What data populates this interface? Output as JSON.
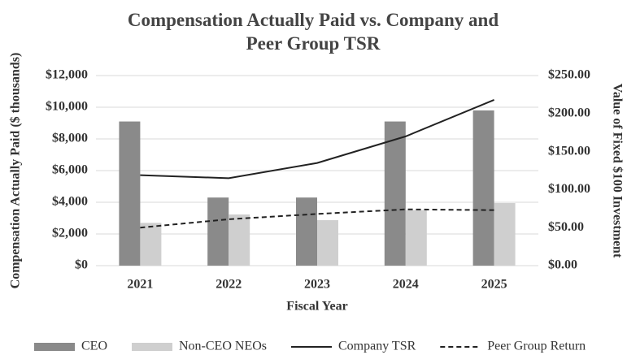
{
  "chart_data": {
    "type": "bar",
    "title": "Compensation Actually Paid vs. Company and Peer Group TSR",
    "xlabel": "Fiscal Year",
    "ylabel": "Compensation Actually Paid ($ thousands)",
    "y2label": "Value of Fixed $100 Investment",
    "categories": [
      "2021",
      "2022",
      "2023",
      "2024",
      "2025"
    ],
    "series": [
      {
        "name": "CEO",
        "type": "bar",
        "color": "#8a8a8a",
        "values": [
          9100,
          4300,
          4300,
          9100,
          9800
        ]
      },
      {
        "name": "Non-CEO NEOs",
        "type": "bar",
        "color": "#cfcfcf",
        "values": [
          2700,
          3230,
          2870,
          3500,
          3950
        ]
      },
      {
        "name": "Company TSR",
        "type": "line",
        "axis": "y2",
        "color": "#222222",
        "line_style": "solid",
        "values": [
          119,
          115,
          135,
          170,
          218
        ]
      },
      {
        "name": "Peer Group Return",
        "type": "line",
        "axis": "y2",
        "color": "#222222",
        "line_style": "dashed",
        "values": [
          50,
          61,
          68,
          74,
          73
        ]
      }
    ],
    "ylim": [
      0,
      12000
    ],
    "yticks": [
      {
        "value": 0,
        "label": "$0"
      },
      {
        "value": 2000,
        "label": "$2,000"
      },
      {
        "value": 4000,
        "label": "$4,000"
      },
      {
        "value": 6000,
        "label": "$6,000"
      },
      {
        "value": 8000,
        "label": "$8,000"
      },
      {
        "value": 10000,
        "label": "$10,000"
      },
      {
        "value": 12000,
        "label": "$12,000"
      }
    ],
    "y2lim": [
      0,
      250
    ],
    "y2ticks": [
      {
        "value": 0,
        "label": "$0.00"
      },
      {
        "value": 50,
        "label": "$50.00"
      },
      {
        "value": 100,
        "label": "$100.00"
      },
      {
        "value": 150,
        "label": "$150.00"
      },
      {
        "value": 200,
        "label": "$200.00"
      },
      {
        "value": 250,
        "label": "$250.00"
      }
    ],
    "grid": true,
    "legend": "bottom"
  }
}
